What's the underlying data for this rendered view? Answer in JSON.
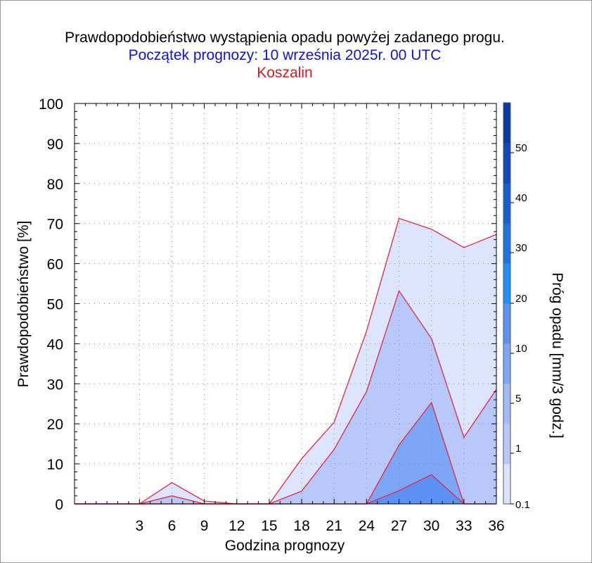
{
  "chart_data": {
    "type": "area",
    "title": "Prawdopodobieństwo wystąpienia opadu powyżej zadanego progu.",
    "subtitle": "Początek prognozy: 10 września 2025r. 00 UTC",
    "location": "Koszalin",
    "xlabel": "Godzina prognozy",
    "ylabel": "Prawdopodobieństwo [%]",
    "xlim": [
      -3,
      36
    ],
    "ylim": [
      0,
      100
    ],
    "x_ticks": [
      3,
      6,
      9,
      12,
      15,
      18,
      21,
      24,
      27,
      30,
      33,
      36
    ],
    "y_ticks": [
      0,
      10,
      20,
      30,
      40,
      50,
      60,
      70,
      80,
      90,
      100
    ],
    "x": [
      -3,
      0,
      3,
      6,
      9,
      12,
      15,
      18,
      21,
      24,
      27,
      30,
      33,
      36
    ],
    "series": [
      {
        "threshold": 0.1,
        "color": "#dde4fd",
        "values": [
          0,
          0,
          0,
          5.3,
          0.7,
          0,
          0,
          11.3,
          20.4,
          43.2,
          71.3,
          68.6,
          64.0,
          67.3
        ]
      },
      {
        "threshold": 1,
        "color": "#b8c8fb",
        "values": [
          0,
          0,
          0,
          2.0,
          0,
          0,
          0,
          3.2,
          13.6,
          28.1,
          53.2,
          41.3,
          16.6,
          28.6
        ]
      },
      {
        "threshold": 5,
        "color": "#7ea6f7",
        "values": [
          0,
          0,
          0,
          0,
          0,
          0,
          0,
          0,
          0,
          0,
          14.7,
          25.3,
          0,
          0
        ]
      },
      {
        "threshold": 10,
        "color": "#5d91f4",
        "values": [
          0,
          0,
          0,
          0,
          0,
          0,
          0,
          0,
          0,
          0,
          3.3,
          7.3,
          0,
          0
        ]
      }
    ],
    "colorbar": {
      "label": "Próg opadu [mm/3 godz.]",
      "tick_labels": [
        "0.1",
        "1",
        "5",
        "10",
        "20",
        "30",
        "40",
        "50"
      ],
      "colors": [
        "#dde4fd",
        "#b8c8fb",
        "#a3bbfa",
        "#7ea6f7",
        "#5d91f4",
        "#1e90ff",
        "#1a74e6",
        "#165ed3",
        "#1048c0",
        "#0b3aa6"
      ]
    },
    "outline_color": "#e02840",
    "grid": true
  }
}
